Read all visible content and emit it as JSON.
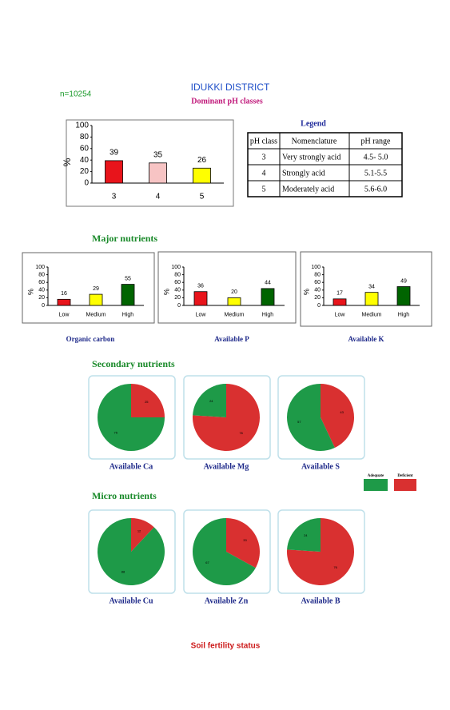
{
  "header": {
    "title": "IDUKKI DISTRICT",
    "sample_size": "n=10254",
    "subtitle": "Dominant pH classes"
  },
  "legend_table": {
    "title": "Legend",
    "columns": [
      "pH class",
      "Nomenclature",
      "pH range"
    ],
    "rows": [
      [
        "3",
        "Very strongly acid",
        "4.5- 5.0"
      ],
      [
        "4",
        "Strongly acid",
        "5.1-5.5"
      ],
      [
        "5",
        "Moderately acid",
        "5.6-6.0"
      ]
    ]
  },
  "sections": [
    "Major nutrients",
    "Secondary nutrients",
    "Micro nutrients"
  ],
  "pie_legend": {
    "labels": [
      "Adequate",
      "Deficient"
    ],
    "colors": [
      "#1e9a48",
      "#d93030"
    ]
  },
  "footer": "Soil fertility status",
  "chart_data": [
    {
      "type": "bar",
      "categories": [
        "3",
        "4",
        "5"
      ],
      "values": [
        39,
        35,
        26
      ],
      "colors": [
        "#e8141b",
        "#f7c4c4",
        "#ffff00"
      ],
      "ylabel": "%",
      "ylim": [
        0,
        100
      ],
      "yticks": [
        0,
        20,
        40,
        60,
        80,
        100
      ]
    },
    {
      "type": "bar",
      "title": "Organic carbon",
      "categories": [
        "Low",
        "Medium",
        "High"
      ],
      "values": [
        16,
        29,
        55
      ],
      "colors": [
        "#e8141b",
        "#ffff00",
        "#006400"
      ],
      "ylabel": "%",
      "ylim": [
        0,
        100
      ],
      "yticks": [
        0,
        20,
        40,
        60,
        80,
        100
      ]
    },
    {
      "type": "bar",
      "title": "Available  P",
      "categories": [
        "Low",
        "Medium",
        "High"
      ],
      "values": [
        36,
        20,
        44
      ],
      "colors": [
        "#e8141b",
        "#ffff00",
        "#006400"
      ],
      "ylabel": "%",
      "ylim": [
        0,
        100
      ],
      "yticks": [
        0,
        20,
        40,
        60,
        80,
        100
      ]
    },
    {
      "type": "bar",
      "title": "Available  K",
      "categories": [
        "Low",
        "Medium",
        "High"
      ],
      "values": [
        17,
        34,
        49
      ],
      "colors": [
        "#e8141b",
        "#ffff00",
        "#006400"
      ],
      "ylabel": "%",
      "ylim": [
        0,
        100
      ],
      "yticks": [
        0,
        20,
        40,
        60,
        80,
        100
      ]
    },
    {
      "type": "pie",
      "title": "Available  Ca",
      "values": [
        75,
        25
      ]
    },
    {
      "type": "pie",
      "title": "Available  Mg",
      "values": [
        24,
        76
      ]
    },
    {
      "type": "pie",
      "title": "Available  S",
      "values": [
        57,
        43
      ]
    },
    {
      "type": "pie",
      "title": "Available Cu",
      "values": [
        88,
        12
      ]
    },
    {
      "type": "pie",
      "title": "Available  Zn",
      "values": [
        67,
        33
      ]
    },
    {
      "type": "pie",
      "title": "Available  B",
      "values": [
        24,
        76
      ]
    }
  ]
}
